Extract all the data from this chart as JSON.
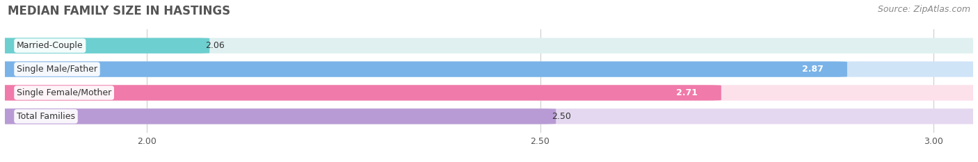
{
  "title": "MEDIAN FAMILY SIZE IN HASTINGS",
  "source": "Source: ZipAtlas.com",
  "categories": [
    "Married-Couple",
    "Single Male/Father",
    "Single Female/Mother",
    "Total Families"
  ],
  "values": [
    2.06,
    2.87,
    2.71,
    2.5
  ],
  "bar_colors": [
    "#6dcfcf",
    "#7ab3e8",
    "#f07aaa",
    "#b89bd4"
  ],
  "bar_bg_colors": [
    "#e0f0f0",
    "#d0e4f8",
    "#fce0ea",
    "#e4d8f0"
  ],
  "value_inside": [
    false,
    true,
    true,
    false
  ],
  "value_colors_inside": [
    "#333333",
    "#ffffff",
    "#ffffff",
    "#333333"
  ],
  "xmin": 1.82,
  "xmax": 3.05,
  "xticks": [
    2.0,
    2.5,
    3.0
  ],
  "xtick_labels": [
    "2.00",
    "2.50",
    "3.00"
  ],
  "background_color": "#ffffff",
  "title_fontsize": 12,
  "source_fontsize": 9,
  "label_fontsize": 9,
  "value_fontsize": 9,
  "bar_height": 0.62,
  "bar_gap": 0.38
}
